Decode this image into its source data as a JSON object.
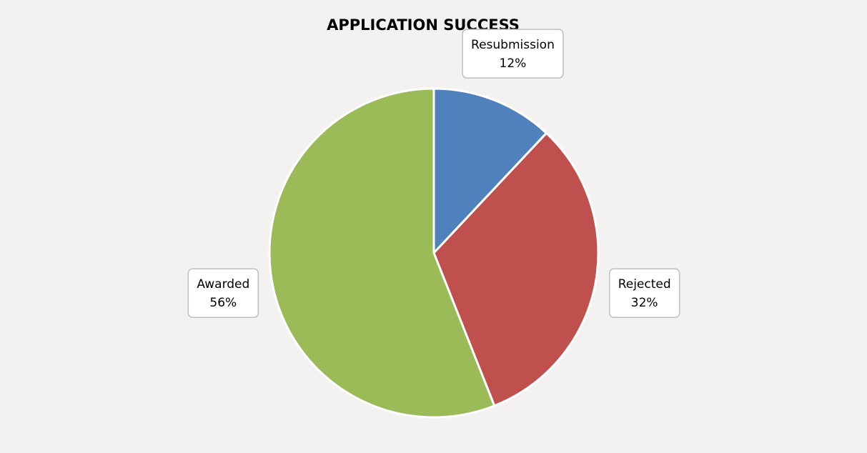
{
  "chart_data": {
    "type": "pie",
    "title": "APPLICATION SUCCESS",
    "categories": [
      "Resubmission",
      "Rejected",
      "Awarded"
    ],
    "values": [
      12,
      32,
      56
    ],
    "value_labels": [
      "12%",
      "32%",
      "56%"
    ],
    "colors": [
      "#4f81bd",
      "#c0504d",
      "#9bbb59"
    ]
  }
}
